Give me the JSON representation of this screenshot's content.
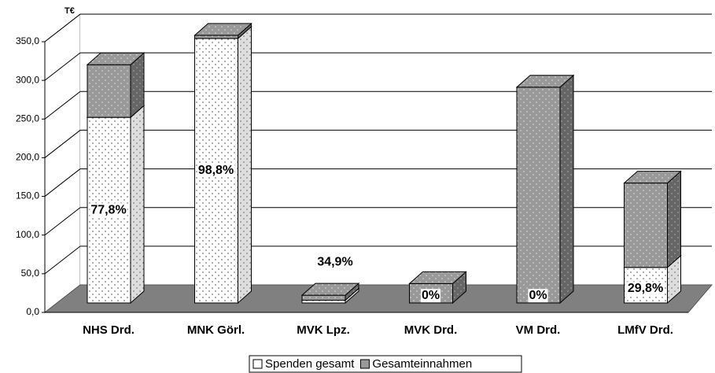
{
  "chart_data": {
    "type": "bar",
    "stacked": true,
    "unit_label": "T€",
    "categories": [
      "NHS  Drd.",
      "MNK Görl.",
      "MVK Lpz.",
      "MVK Drd.",
      "VM Drd.",
      "LMfV Drd."
    ],
    "series": [
      {
        "name": "Spenden gesamt",
        "color": "#ffffff",
        "values": [
          240,
          342,
          3.5,
          0,
          0,
          46
        ]
      },
      {
        "name": "Gesamteinnahmen",
        "color": "#999999",
        "values": [
          68,
          4,
          6.5,
          25,
          279,
          109
        ]
      }
    ],
    "annotations": [
      "77,8%",
      "98,8%",
      "34,9%",
      "0%",
      "0%",
      "29,8%"
    ],
    "ylim": [
      0,
      350
    ],
    "yticks": [
      {
        "value": 0,
        "label": "0,0"
      },
      {
        "value": 50,
        "label": "50,0"
      },
      {
        "value": 100,
        "label": "100,0"
      },
      {
        "value": 150,
        "label": "150,0"
      },
      {
        "value": 200,
        "label": "200,0"
      },
      {
        "value": 250,
        "label": "250,0"
      },
      {
        "value": 300,
        "label": "300,0"
      },
      {
        "value": 350,
        "label": "350,0"
      }
    ],
    "grid": true
  }
}
